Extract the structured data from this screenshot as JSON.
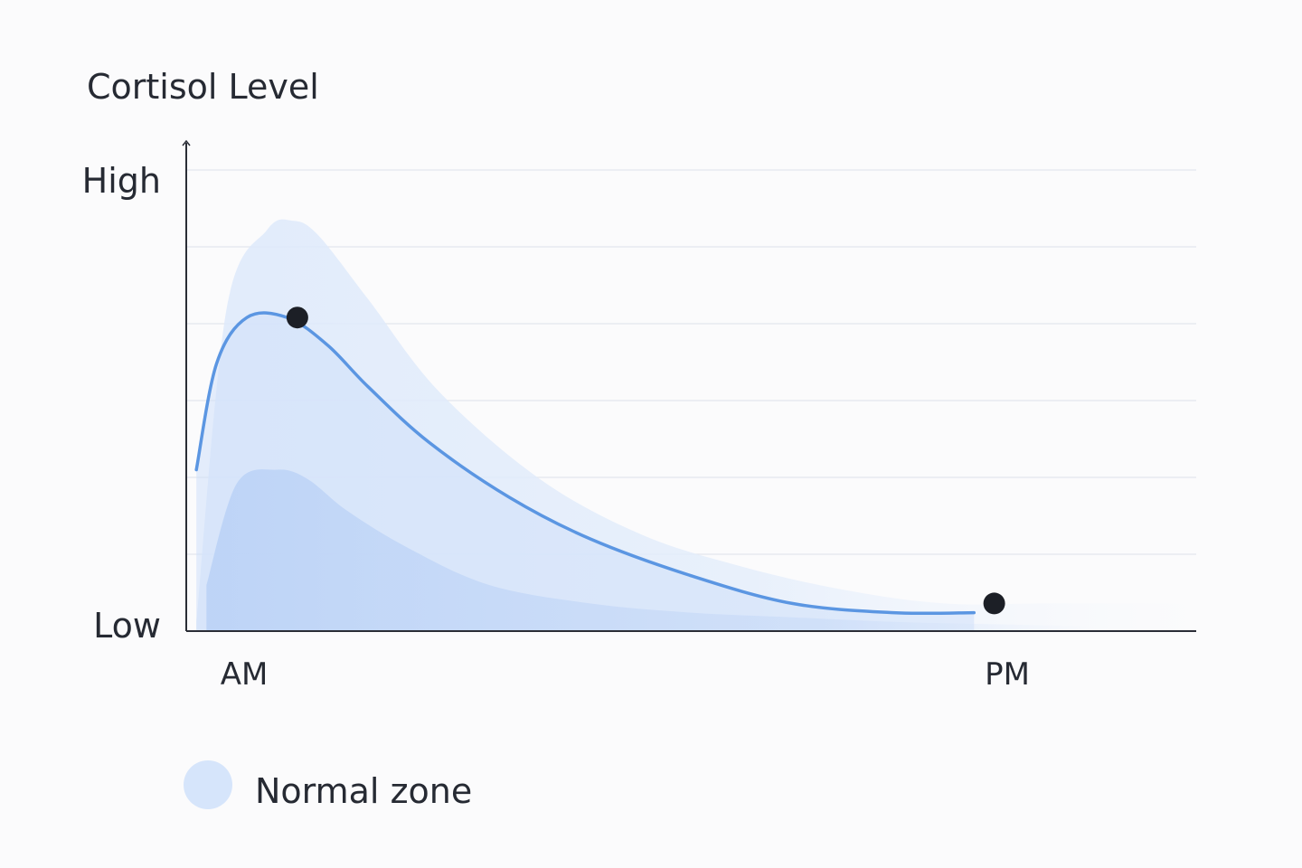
{
  "chart_data": {
    "type": "area",
    "title": "Cortisol Level",
    "ylabel": "Cortisol Level",
    "y_tick_labels": {
      "top": "High",
      "bottom": "Low"
    },
    "x_tick_labels": [
      "AM",
      "PM"
    ],
    "legend": {
      "label": "Normal zone",
      "color": "#d6e5fb",
      "placement": "bottom-left"
    },
    "grid": true,
    "x_domain": [
      0,
      100
    ],
    "ylim": [
      0,
      100
    ],
    "series": [
      {
        "role": "curve",
        "x": [
          1,
          3,
          6,
          10,
          14,
          18,
          24,
          32,
          40,
          50,
          60,
          70,
          78
        ],
        "values": [
          35,
          58,
          68,
          68,
          62,
          53,
          41,
          29,
          20,
          12,
          6,
          4,
          4
        ]
      },
      {
        "role": "band-upper",
        "x": [
          1,
          4,
          8,
          10.5,
          13,
          18,
          25,
          35,
          45,
          55,
          65,
          75,
          85,
          100
        ],
        "values": [
          2,
          70,
          87,
          89,
          86,
          72,
          52,
          33,
          21,
          14,
          9,
          6,
          6,
          6
        ]
      },
      {
        "role": "band-lower",
        "x": [
          2,
          5,
          9,
          12,
          16,
          22,
          30,
          40,
          50,
          60,
          70,
          80,
          90
        ],
        "values": [
          10,
          32,
          35,
          33,
          26,
          18,
          10,
          6,
          4,
          3,
          2,
          1.5,
          1
        ]
      }
    ],
    "points": [
      {
        "label": "peak",
        "x": 11,
        "y": 68
      },
      {
        "label": "evening",
        "x": 80,
        "y": 6
      }
    ],
    "colors": {
      "curve": "#5b96e2",
      "band_outer": "#e6f0fc",
      "band_inner": "#c7dbf8",
      "point": "#1c1f26",
      "axis": "#2a2d36",
      "grid": "#e3e6ed"
    }
  }
}
